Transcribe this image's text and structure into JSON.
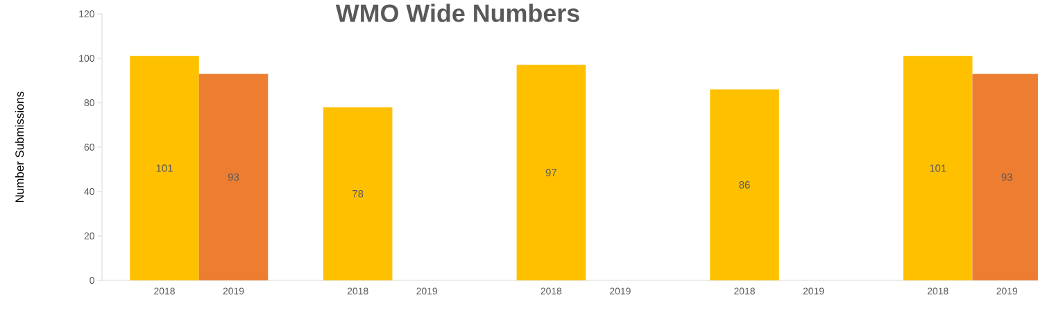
{
  "chart_data": {
    "type": "bar",
    "title": "WMO Wide Numbers",
    "ylabel": "Number Submissions",
    "categories": [
      "2018",
      "2019",
      "2018",
      "2019",
      "2018",
      "2019",
      "2018",
      "2019",
      "2018",
      "2019"
    ],
    "values": [
      101,
      93,
      78,
      null,
      97,
      null,
      86,
      null,
      101,
      93
    ],
    "colors": [
      "#ffc000",
      "#ed7d31",
      "#ffc000",
      "#ed7d31",
      "#ffc000",
      "#ed7d31",
      "#ffc000",
      "#ed7d31",
      "#ffc000",
      "#ed7d31"
    ],
    "ylim": [
      0,
      120
    ],
    "yticks": [
      0,
      20,
      40,
      60,
      80,
      100,
      120
    ],
    "data_labels": true,
    "grid": false
  }
}
